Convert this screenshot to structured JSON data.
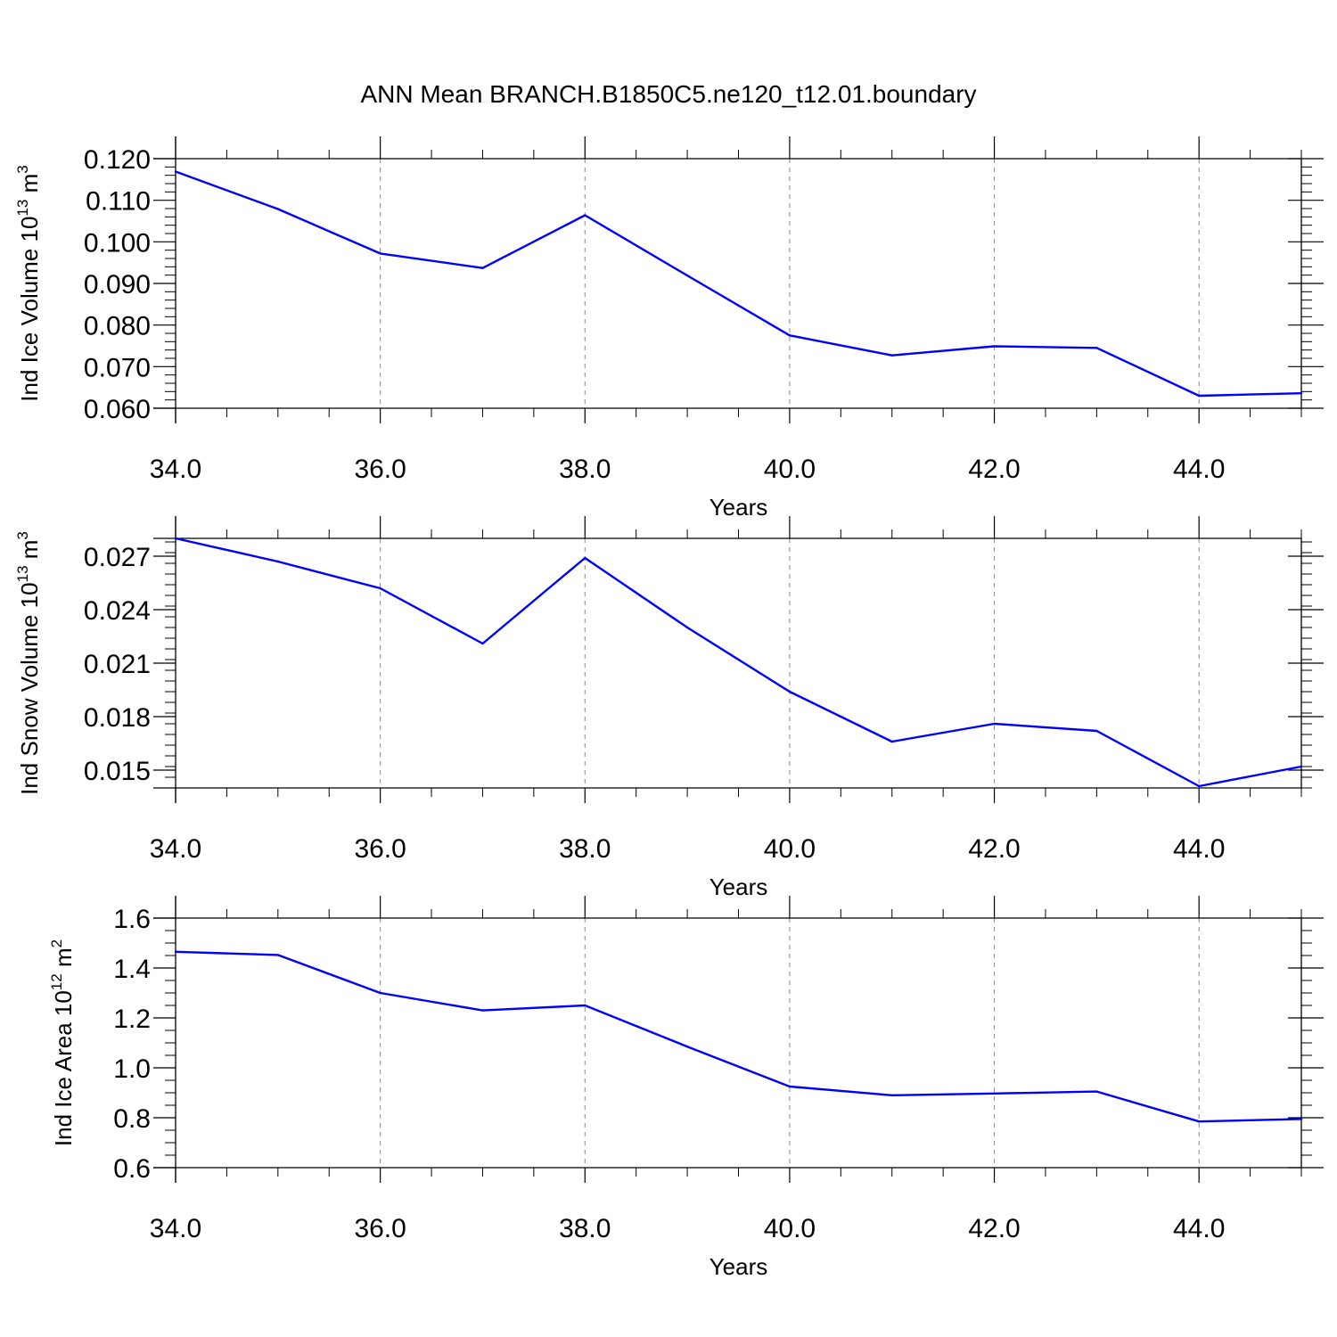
{
  "title": "ANN Mean BRANCH.B1850C5.ne120_t12.01.boundary",
  "line_color": "#0000ff",
  "chart_data": [
    {
      "type": "line",
      "ylabel_main": "Ind Ice Volume 10",
      "ylabel_exp": "13",
      "ylabel_unit": "m",
      "ylabel_unit_exp": "3",
      "xlabel": "Years",
      "xlim": [
        34,
        45
      ],
      "ylim": [
        0.06,
        0.12
      ],
      "x_ticks": [
        34,
        36,
        38,
        40,
        42,
        44
      ],
      "x_tick_labels": [
        "34.0",
        "36.0",
        "38.0",
        "40.0",
        "42.0",
        "44.0"
      ],
      "y_ticks": [
        0.06,
        0.07,
        0.08,
        0.09,
        0.1,
        0.11,
        0.12
      ],
      "y_tick_labels": [
        "0.060",
        "0.070",
        "0.080",
        "0.090",
        "0.100",
        "0.110",
        "0.120"
      ],
      "x_minor_step": 0.5,
      "y_minor_step": 0.002,
      "grid": "vertical-dashed",
      "x": [
        34,
        35,
        36,
        37,
        38,
        39,
        40,
        41,
        42,
        43,
        44,
        45
      ],
      "values": [
        0.1169,
        0.1079,
        0.0972,
        0.0937,
        0.1064,
        0.0919,
        0.0775,
        0.0727,
        0.0749,
        0.0745,
        0.063,
        0.0636
      ]
    },
    {
      "type": "line",
      "ylabel_main": "Ind Snow Volume 10",
      "ylabel_exp": "13",
      "ylabel_unit": "m",
      "ylabel_unit_exp": "3",
      "xlabel": "Years",
      "xlim": [
        34,
        45
      ],
      "ylim": [
        0.014,
        0.028
      ],
      "x_ticks": [
        34,
        36,
        38,
        40,
        42,
        44
      ],
      "x_tick_labels": [
        "34.0",
        "36.0",
        "38.0",
        "40.0",
        "42.0",
        "44.0"
      ],
      "y_ticks": [
        0.015,
        0.018,
        0.021,
        0.024,
        0.027
      ],
      "y_tick_labels": [
        "0.015",
        "0.018",
        "0.021",
        "0.024",
        "0.027"
      ],
      "x_minor_step": 0.5,
      "y_minor_step": 0.0006,
      "grid": "vertical-dashed",
      "x": [
        34,
        35,
        36,
        37,
        38,
        39,
        40,
        41,
        42,
        43,
        44,
        45
      ],
      "values": [
        0.028,
        0.0267,
        0.0252,
        0.0221,
        0.0269,
        0.023,
        0.0194,
        0.0166,
        0.0176,
        0.0172,
        0.0141,
        0.0152
      ]
    },
    {
      "type": "line",
      "ylabel_main": "Ind Ice Area 10",
      "ylabel_exp": "12",
      "ylabel_unit": "m",
      "ylabel_unit_exp": "2",
      "xlabel": "Years",
      "xlim": [
        34,
        45
      ],
      "ylim": [
        0.6,
        1.6
      ],
      "x_ticks": [
        34,
        36,
        38,
        40,
        42,
        44
      ],
      "x_tick_labels": [
        "34.0",
        "36.0",
        "38.0",
        "40.0",
        "42.0",
        "44.0"
      ],
      "y_ticks": [
        0.6,
        0.8,
        1.0,
        1.2,
        1.4,
        1.6
      ],
      "y_tick_labels": [
        "0.6",
        "0.8",
        "1.0",
        "1.2",
        "1.4",
        "1.6"
      ],
      "x_minor_step": 0.5,
      "y_minor_step": 0.05,
      "grid": "vertical-dashed",
      "x": [
        34,
        35,
        36,
        37,
        38,
        39,
        40,
        41,
        42,
        43,
        44,
        45
      ],
      "values": [
        1.465,
        1.452,
        1.3,
        1.23,
        1.25,
        1.085,
        0.925,
        0.89,
        0.897,
        0.905,
        0.785,
        0.795
      ]
    }
  ]
}
